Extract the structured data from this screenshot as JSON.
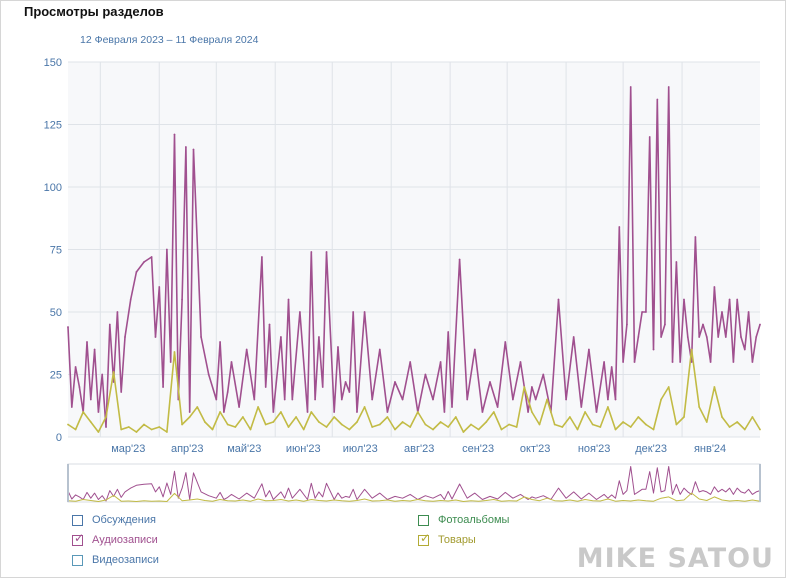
{
  "header": {
    "title": "Просмотры разделов",
    "date_range": "12 Февраля 2023 – 11 Февраля 2024"
  },
  "watermark": "MIKE SATOU",
  "colors": {
    "audio": "#a0508f",
    "goods": "#c2bb45",
    "discussions": "#4a76a8",
    "photos": "#3d8c50",
    "videos": "#5a98b8",
    "grid": "#dfe3e8",
    "plot_bg": "#f7f8fa",
    "axis_text": "#4a76a8"
  },
  "legend": [
    {
      "key": "discussions",
      "label": "Обсуждения",
      "checked": false
    },
    {
      "key": "photos",
      "label": "Фотоальбомы",
      "checked": false
    },
    {
      "key": "audio",
      "label": "Аудиозаписи",
      "checked": true
    },
    {
      "key": "goods",
      "label": "Товары",
      "checked": true
    },
    {
      "key": "videos",
      "label": "Видеозаписи",
      "checked": false
    }
  ],
  "chart_data": {
    "type": "line",
    "title": "Просмотры разделов",
    "subtitle": "12 Февраля 2023 – 11 Февраля 2024",
    "ylim": [
      0,
      150
    ],
    "yticks": [
      0,
      25,
      50,
      75,
      100,
      125,
      150
    ],
    "x_range": [
      0,
      364
    ],
    "month_ticks": [
      {
        "label": "мар'23",
        "day": 17
      },
      {
        "label": "апр'23",
        "day": 48
      },
      {
        "label": "май'23",
        "day": 78
      },
      {
        "label": "июн'23",
        "day": 109
      },
      {
        "label": "июл'23",
        "day": 139
      },
      {
        "label": "авг'23",
        "day": 170
      },
      {
        "label": "сен'23",
        "day": 201
      },
      {
        "label": "окт'23",
        "day": 231
      },
      {
        "label": "ноя'23",
        "day": 262
      },
      {
        "label": "дек'23",
        "day": 292
      },
      {
        "label": "янв'24",
        "day": 323
      }
    ],
    "series": [
      {
        "name": "Аудиозаписи",
        "key": "audio",
        "x": [
          0,
          2,
          4,
          6,
          8,
          10,
          12,
          14,
          16,
          18,
          20,
          22,
          24,
          26,
          28,
          30,
          33,
          36,
          40,
          44,
          46,
          48,
          50,
          52,
          54,
          56,
          58,
          60,
          62,
          64,
          66,
          70,
          74,
          78,
          80,
          82,
          84,
          86,
          90,
          94,
          98,
          102,
          104,
          106,
          108,
          112,
          114,
          116,
          118,
          122,
          126,
          128,
          130,
          132,
          134,
          136,
          140,
          142,
          144,
          146,
          148,
          150,
          152,
          156,
          160,
          164,
          168,
          172,
          176,
          180,
          184,
          188,
          192,
          196,
          198,
          200,
          202,
          206,
          210,
          214,
          218,
          222,
          226,
          230,
          234,
          238,
          242,
          244,
          246,
          250,
          254,
          258,
          262,
          266,
          270,
          274,
          278,
          282,
          284,
          286,
          288,
          290,
          292,
          294,
          296,
          298,
          300,
          302,
          304,
          306,
          308,
          310,
          312,
          314,
          316,
          318,
          320,
          322,
          324,
          326,
          328,
          330,
          332,
          334,
          336,
          338,
          340,
          342,
          344,
          346,
          348,
          350,
          352,
          354,
          356,
          358,
          360,
          362,
          364
        ],
        "values": [
          44,
          12,
          28,
          20,
          10,
          38,
          15,
          35,
          10,
          25,
          4,
          45,
          22,
          50,
          18,
          40,
          55,
          66,
          70,
          72,
          40,
          60,
          20,
          75,
          30,
          121,
          15,
          55,
          116,
          10,
          115,
          40,
          25,
          15,
          38,
          10,
          18,
          30,
          12,
          35,
          15,
          72,
          20,
          45,
          10,
          40,
          15,
          55,
          15,
          50,
          10,
          74,
          15,
          40,
          20,
          74,
          10,
          36,
          15,
          22,
          18,
          50,
          10,
          50,
          15,
          35,
          10,
          22,
          15,
          30,
          10,
          25,
          15,
          30,
          10,
          42,
          12,
          71,
          15,
          35,
          10,
          22,
          12,
          38,
          15,
          30,
          10,
          20,
          15,
          25,
          10,
          55,
          15,
          40,
          12,
          35,
          10,
          30,
          15,
          28,
          15,
          84,
          30,
          45,
          140,
          30,
          40,
          50,
          50,
          120,
          35,
          135,
          40,
          45,
          140,
          30,
          70,
          30,
          55,
          40,
          30,
          80,
          40,
          45,
          40,
          30,
          60,
          40,
          50,
          40,
          55,
          30,
          55,
          40,
          35,
          50,
          30,
          40,
          45
        ]
      },
      {
        "name": "Товары",
        "key": "goods",
        "x": [
          0,
          4,
          8,
          12,
          16,
          20,
          24,
          28,
          32,
          36,
          40,
          44,
          48,
          52,
          56,
          60,
          64,
          68,
          72,
          76,
          80,
          84,
          88,
          92,
          96,
          100,
          104,
          108,
          112,
          116,
          120,
          124,
          128,
          132,
          136,
          140,
          144,
          148,
          152,
          156,
          160,
          164,
          168,
          172,
          176,
          180,
          184,
          188,
          192,
          196,
          200,
          204,
          208,
          212,
          216,
          220,
          224,
          228,
          232,
          236,
          240,
          244,
          248,
          252,
          256,
          260,
          264,
          268,
          272,
          276,
          280,
          284,
          288,
          292,
          296,
          300,
          304,
          308,
          312,
          316,
          320,
          324,
          328,
          332,
          336,
          340,
          344,
          348,
          352,
          356,
          360,
          364
        ],
        "values": [
          5,
          3,
          10,
          6,
          2,
          8,
          26,
          3,
          4,
          2,
          5,
          3,
          4,
          2,
          34,
          5,
          8,
          12,
          6,
          3,
          10,
          5,
          4,
          8,
          3,
          12,
          5,
          6,
          10,
          4,
          8,
          3,
          10,
          6,
          4,
          8,
          5,
          3,
          6,
          12,
          4,
          5,
          8,
          3,
          6,
          4,
          10,
          5,
          3,
          6,
          4,
          8,
          2,
          5,
          3,
          6,
          10,
          3,
          5,
          4,
          20,
          10,
          5,
          15,
          5,
          4,
          8,
          3,
          10,
          5,
          4,
          12,
          3,
          6,
          4,
          8,
          5,
          3,
          15,
          20,
          5,
          8,
          35,
          12,
          6,
          20,
          8,
          4,
          6,
          3,
          8,
          3
        ]
      }
    ]
  }
}
